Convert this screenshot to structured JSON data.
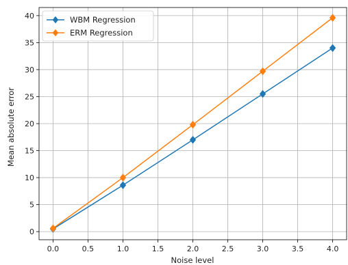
{
  "chart_data": {
    "type": "line",
    "x": [
      0.0,
      1.0,
      2.0,
      3.0,
      4.0
    ],
    "series": [
      {
        "name": "WBM Regression",
        "values": [
          0.5,
          8.6,
          17.0,
          25.5,
          34.0
        ],
        "color": "#1f77b4",
        "marker": "diamond"
      },
      {
        "name": "ERM Regression",
        "values": [
          0.6,
          10.0,
          19.8,
          29.7,
          39.6
        ],
        "color": "#ff7f0e",
        "marker": "diamond"
      }
    ],
    "xlabel": "Noise level",
    "ylabel": "Mean absolute error",
    "xlim": [
      -0.2,
      4.2
    ],
    "ylim": [
      -1.5,
      41.5
    ],
    "xticks": [
      "0.0",
      "0.5",
      "1.0",
      "1.5",
      "2.0",
      "2.5",
      "3.0",
      "3.5",
      "4.0"
    ],
    "yticks": [
      "0",
      "5",
      "10",
      "15",
      "20",
      "25",
      "30",
      "35",
      "40"
    ],
    "grid": true,
    "legend_position": "top-left"
  }
}
